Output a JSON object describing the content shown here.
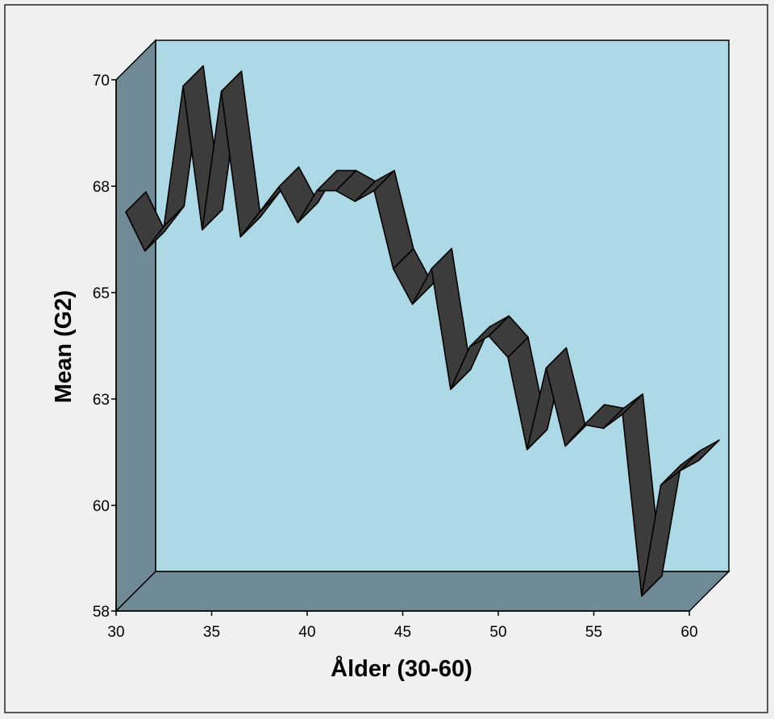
{
  "chart_data": {
    "type": "area",
    "style": "3d-ribbon",
    "xlabel": "Ålder (30-60)",
    "ylabel": "Mean (G2)",
    "xlim": [
      30,
      60
    ],
    "ylim": [
      58,
      70
    ],
    "x_ticks": [
      "30",
      "35",
      "40",
      "45",
      "50",
      "55",
      "60"
    ],
    "y_ticks": [
      {
        "value": 58,
        "label": "58"
      },
      {
        "value": 60,
        "label": "60"
      },
      {
        "value": 63,
        "label": "63"
      },
      {
        "value": 65,
        "label": "65"
      },
      {
        "value": 68,
        "label": "68"
      },
      {
        "value": 70,
        "label": "70"
      }
    ],
    "grid": false,
    "colors": {
      "background": "#f0f0f0",
      "back_wall": "#add8e6",
      "side_wall": "#708a96",
      "floor": "#708a96",
      "ribbon": "#3c3c3c",
      "edge": "#000000"
    },
    "series": [
      {
        "x": [
          30,
          31,
          32,
          33,
          34,
          35,
          36,
          37,
          38,
          39,
          40,
          41,
          42,
          43,
          44,
          45,
          46,
          47,
          48,
          49,
          50,
          51,
          52,
          53,
          54,
          55,
          56,
          57,
          58,
          59,
          60
        ],
        "values": [
          67.0,
          65.9,
          66.6,
          69.7,
          66.5,
          69.6,
          66.3,
          67.0,
          67.7,
          66.7,
          67.6,
          67.6,
          67.3,
          67.6,
          65.4,
          64.6,
          65.4,
          63.0,
          63.8,
          64.0,
          63.6,
          61.3,
          63.4,
          61.4,
          62.0,
          61.9,
          62.3,
          58.1,
          60.3,
          60.7,
          61.0
        ]
      }
    ]
  }
}
